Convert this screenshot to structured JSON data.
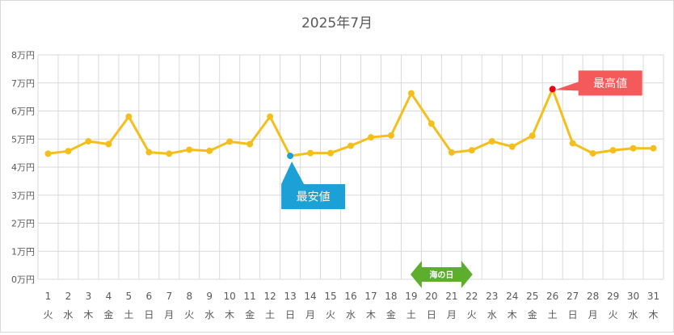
{
  "chart_data": {
    "type": "line",
    "title": "2025年7月",
    "xlabel": "",
    "ylabel": "",
    "ylim": [
      0,
      80000
    ],
    "yticks": [
      {
        "value": 0,
        "label": "0万円"
      },
      {
        "value": 10000,
        "label": "1万円"
      },
      {
        "value": 20000,
        "label": "2万円"
      },
      {
        "value": 30000,
        "label": "3万円"
      },
      {
        "value": 40000,
        "label": "4万円"
      },
      {
        "value": 50000,
        "label": "5万円"
      },
      {
        "value": 60000,
        "label": "6万円"
      },
      {
        "value": 70000,
        "label": "7万円"
      },
      {
        "value": 80000,
        "label": "8万円"
      }
    ],
    "grid": true,
    "legend": "none",
    "categories": [
      "1",
      "2",
      "3",
      "4",
      "5",
      "6",
      "7",
      "8",
      "9",
      "10",
      "11",
      "12",
      "13",
      "14",
      "15",
      "16",
      "17",
      "18",
      "19",
      "20",
      "21",
      "22",
      "23",
      "24",
      "25",
      "26",
      "27",
      "28",
      "29",
      "30",
      "31"
    ],
    "weekdays": [
      "火",
      "水",
      "木",
      "金",
      "土",
      "日",
      "月",
      "火",
      "水",
      "木",
      "金",
      "土",
      "日",
      "月",
      "火",
      "水",
      "木",
      "金",
      "土",
      "日",
      "月",
      "火",
      "水",
      "木",
      "金",
      "土",
      "日",
      "月",
      "火",
      "水",
      "木"
    ],
    "series": [
      {
        "values": [
          44800,
          45700,
          49200,
          48200,
          58000,
          45300,
          44800,
          46200,
          45800,
          49100,
          48200,
          58000,
          44000,
          45000,
          45000,
          47600,
          50600,
          51300,
          66300,
          55500,
          45200,
          46000,
          49200,
          47300,
          51200,
          67800,
          48500,
          44900,
          46000,
          46700,
          46700
        ],
        "color": "#f5bf1b"
      }
    ],
    "annotations": {
      "min": {
        "label": "最安値",
        "index": 12,
        "color": "#1ba1d6",
        "box_color": "#1ba1d6"
      },
      "max": {
        "label": "最高値",
        "index": 25,
        "color": "#e8000d",
        "box_color": "#f45a5a"
      },
      "holiday": {
        "label": "海の日",
        "start_index": 18,
        "end_index": 21,
        "color": "#5dae2c"
      }
    }
  }
}
